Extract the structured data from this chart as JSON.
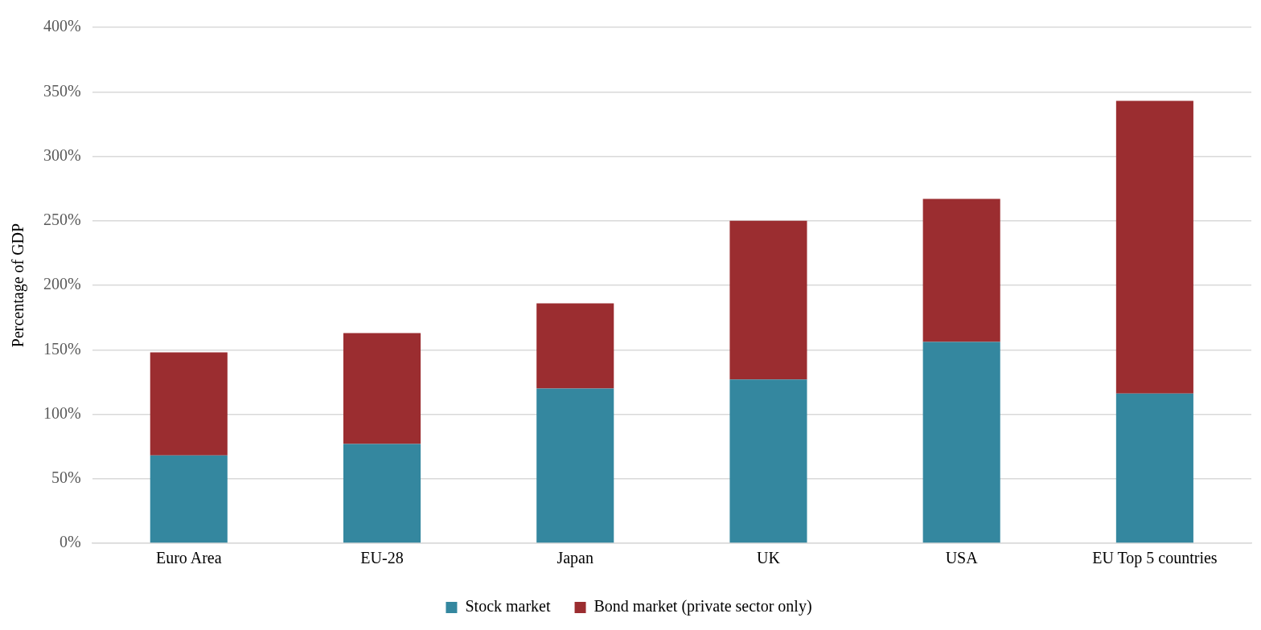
{
  "chart_data": {
    "type": "bar",
    "stacked": true,
    "ylabel": "Percentage of GDP",
    "categories": [
      "Euro Area",
      "EU-28",
      "Japan",
      "UK",
      "USA",
      "EU Top 5 countries"
    ],
    "series": [
      {
        "name": "Stock market",
        "color": "#34879f",
        "values": [
          68,
          77,
          120,
          127,
          156,
          116
        ]
      },
      {
        "name": "Bond market (private sector only)",
        "color": "#9b2d30",
        "values": [
          80,
          86,
          66,
          123,
          111,
          227
        ]
      }
    ],
    "ylim": [
      0,
      400
    ],
    "yticks": [
      {
        "value": 0,
        "label": "0%"
      },
      {
        "value": 50,
        "label": "50%"
      },
      {
        "value": 100,
        "label": "100%"
      },
      {
        "value": 150,
        "label": "150%"
      },
      {
        "value": 200,
        "label": "200%"
      },
      {
        "value": 250,
        "label": "250%"
      },
      {
        "value": 300,
        "label": "300%"
      },
      {
        "value": 350,
        "label": "350%"
      },
      {
        "value": 400,
        "label": "400%"
      }
    ],
    "grid": "y",
    "legend": "bottom"
  }
}
